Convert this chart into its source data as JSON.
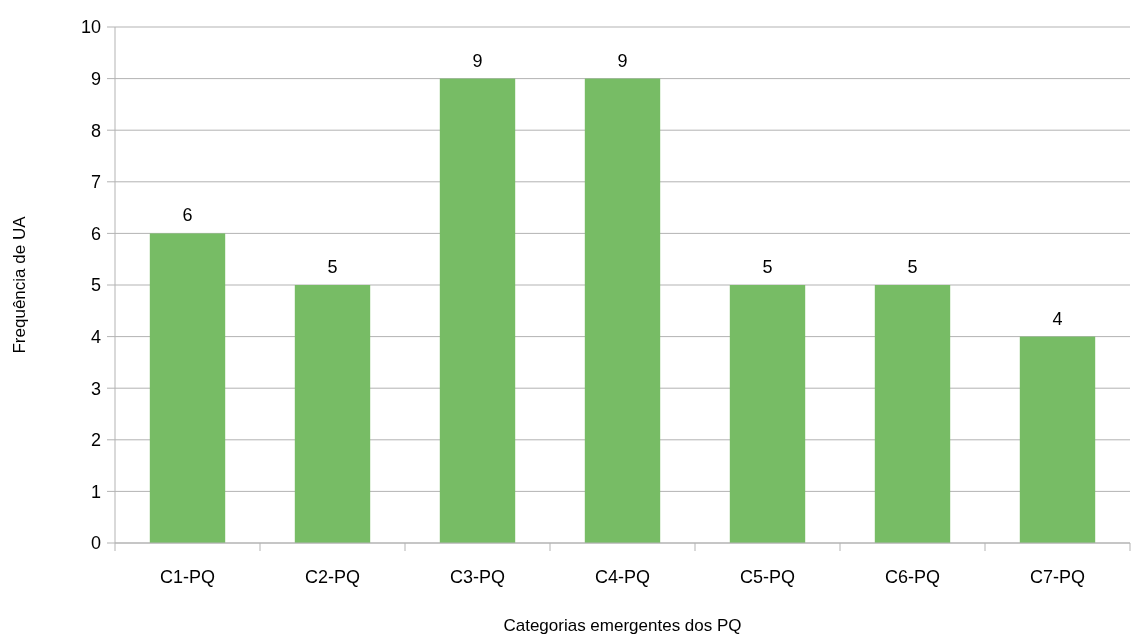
{
  "chart_data": {
    "type": "bar",
    "xlabel": "Categorias emergentes dos PQ",
    "ylabel": "Frequência de UA",
    "categories": [
      "C1-PQ",
      "C2-PQ",
      "C3-PQ",
      "C4-PQ",
      "C5-PQ",
      "C6-PQ",
      "C7-PQ"
    ],
    "values": [
      6,
      5,
      9,
      9,
      5,
      5,
      4
    ],
    "color": "#77bc65",
    "ylim": [
      0,
      10
    ],
    "yticks": [
      0,
      1,
      2,
      3,
      4,
      5,
      6,
      7,
      8,
      9,
      10
    ],
    "grid": "y",
    "data_labels": true
  }
}
